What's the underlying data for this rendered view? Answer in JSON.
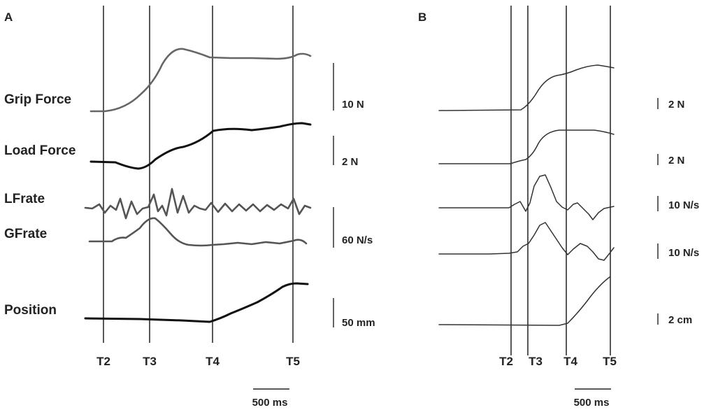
{
  "panels": {
    "a": {
      "letter": "A",
      "traces": {
        "grip": "Grip Force",
        "load": "Load Force",
        "lf": "LFrate",
        "gf": "GFrate",
        "pos": "Position"
      },
      "scales": {
        "grip": "10 N",
        "load": "2 N",
        "rate": "60 N/s",
        "pos": "50 mm"
      },
      "markers": [
        "T2",
        "T3",
        "T4",
        "T5"
      ],
      "timebar": "500 ms"
    },
    "b": {
      "letter": "B",
      "scales": {
        "s1": "2 N",
        "s2": "2 N",
        "s3": "10 N/s",
        "s4": "10 N/s",
        "s5": "2 cm"
      },
      "markers": [
        "T2",
        "T3",
        "T4",
        "T5"
      ],
      "timebar": "500 ms"
    }
  }
}
